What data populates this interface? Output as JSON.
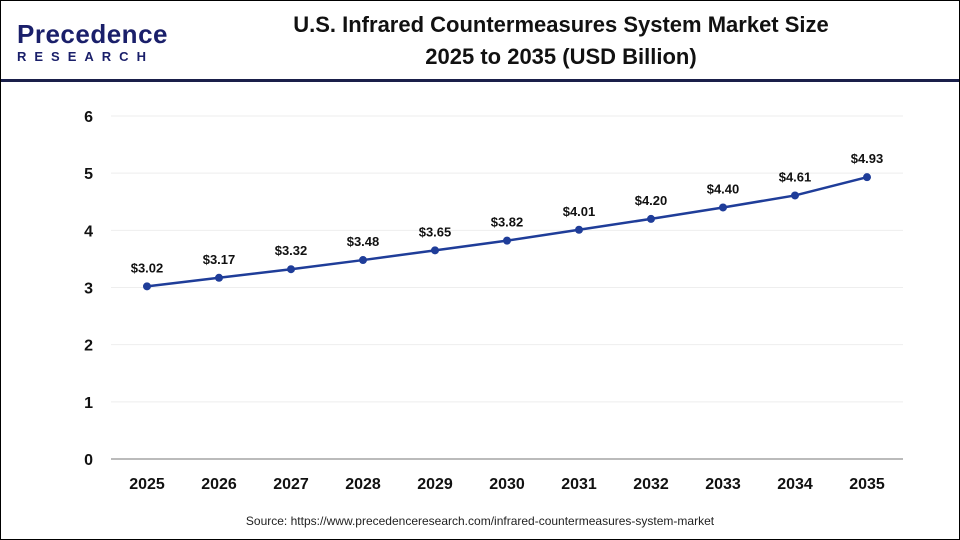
{
  "logo": {
    "line1": "Precedence",
    "line2": "RESEARCH"
  },
  "chart_data": {
    "type": "line",
    "title_line1": "U.S. Infrared Countermeasures System Market Size",
    "title_line2": "2025 to 2035 (USD Billion)",
    "categories": [
      "2025",
      "2026",
      "2027",
      "2028",
      "2029",
      "2030",
      "2031",
      "2032",
      "2033",
      "2034",
      "2035"
    ],
    "values": [
      3.02,
      3.17,
      3.32,
      3.48,
      3.65,
      3.82,
      4.01,
      4.2,
      4.4,
      4.61,
      4.93
    ],
    "data_labels": [
      "$3.02",
      "$3.17",
      "$3.32",
      "$3.48",
      "$3.65",
      "$3.82",
      "$4.01",
      "$4.20",
      "$4.40",
      "$4.61",
      "$4.93"
    ],
    "yticks": [
      "0",
      "1",
      "2",
      "3",
      "4",
      "5",
      "6"
    ],
    "ylim": [
      0,
      6
    ],
    "grid": true,
    "color": "#1f3d99"
  },
  "source": "Source: https://www.precedenceresearch.com/infrared-countermeasures-system-market"
}
